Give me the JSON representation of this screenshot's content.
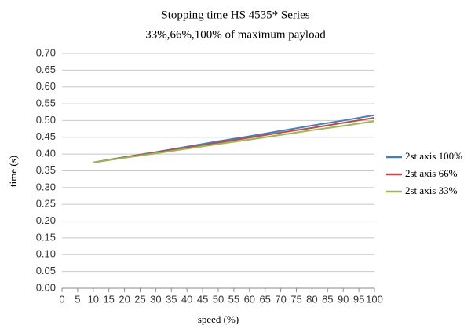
{
  "chart_data": {
    "type": "line",
    "title": "Stopping time HS 4535* Series",
    "subtitle": "33%,66%,100% of maximum payload",
    "x_label": "speed (%)",
    "y_label": "time (s)",
    "x": [
      10,
      20,
      30,
      40,
      50,
      60,
      70,
      80,
      90,
      100
    ],
    "series": [
      {
        "name": "2st axis 100%",
        "color": "#4a7ebb",
        "values": [
          0.375,
          0.391,
          0.406,
          0.422,
          0.438,
          0.453,
          0.469,
          0.485,
          0.5,
          0.516
        ]
      },
      {
        "name": "2st axis 66%",
        "color": "#be4b48",
        "values": [
          0.375,
          0.39,
          0.405,
          0.419,
          0.434,
          0.449,
          0.464,
          0.478,
          0.493,
          0.508
        ]
      },
      {
        "name": "2st axis 33%",
        "color": "#98b954",
        "values": [
          0.375,
          0.389,
          0.402,
          0.416,
          0.43,
          0.443,
          0.457,
          0.471,
          0.484,
          0.498
        ]
      }
    ],
    "xlim": [
      0,
      100
    ],
    "xticks": [
      0,
      5,
      10,
      15,
      20,
      25,
      30,
      35,
      40,
      45,
      50,
      55,
      60,
      65,
      70,
      75,
      80,
      85,
      90,
      95,
      100
    ],
    "ylim": [
      0,
      0.7
    ],
    "yticks": [
      {
        "value": 0,
        "label": "0.00"
      },
      {
        "value": 0.05,
        "label": "0.05"
      },
      {
        "value": 0.1,
        "label": "0.10"
      },
      {
        "value": 0.15,
        "label": "0.15"
      },
      {
        "value": 0.2,
        "label": "0.20"
      },
      {
        "value": 0.25,
        "label": "0.25"
      },
      {
        "value": 0.3,
        "label": "0.30"
      },
      {
        "value": 0.35,
        "label": "0.35"
      },
      {
        "value": 0.4,
        "label": "0.40"
      },
      {
        "value": 0.45,
        "label": "0.45"
      },
      {
        "value": 0.5,
        "label": "0.50"
      },
      {
        "value": 0.55,
        "label": "0.55"
      },
      {
        "value": 0.6,
        "label": "0.60"
      },
      {
        "value": 0.65,
        "label": "0.65"
      },
      {
        "value": 0.7,
        "label": "0.70"
      }
    ],
    "grid": true,
    "legend": "right"
  }
}
